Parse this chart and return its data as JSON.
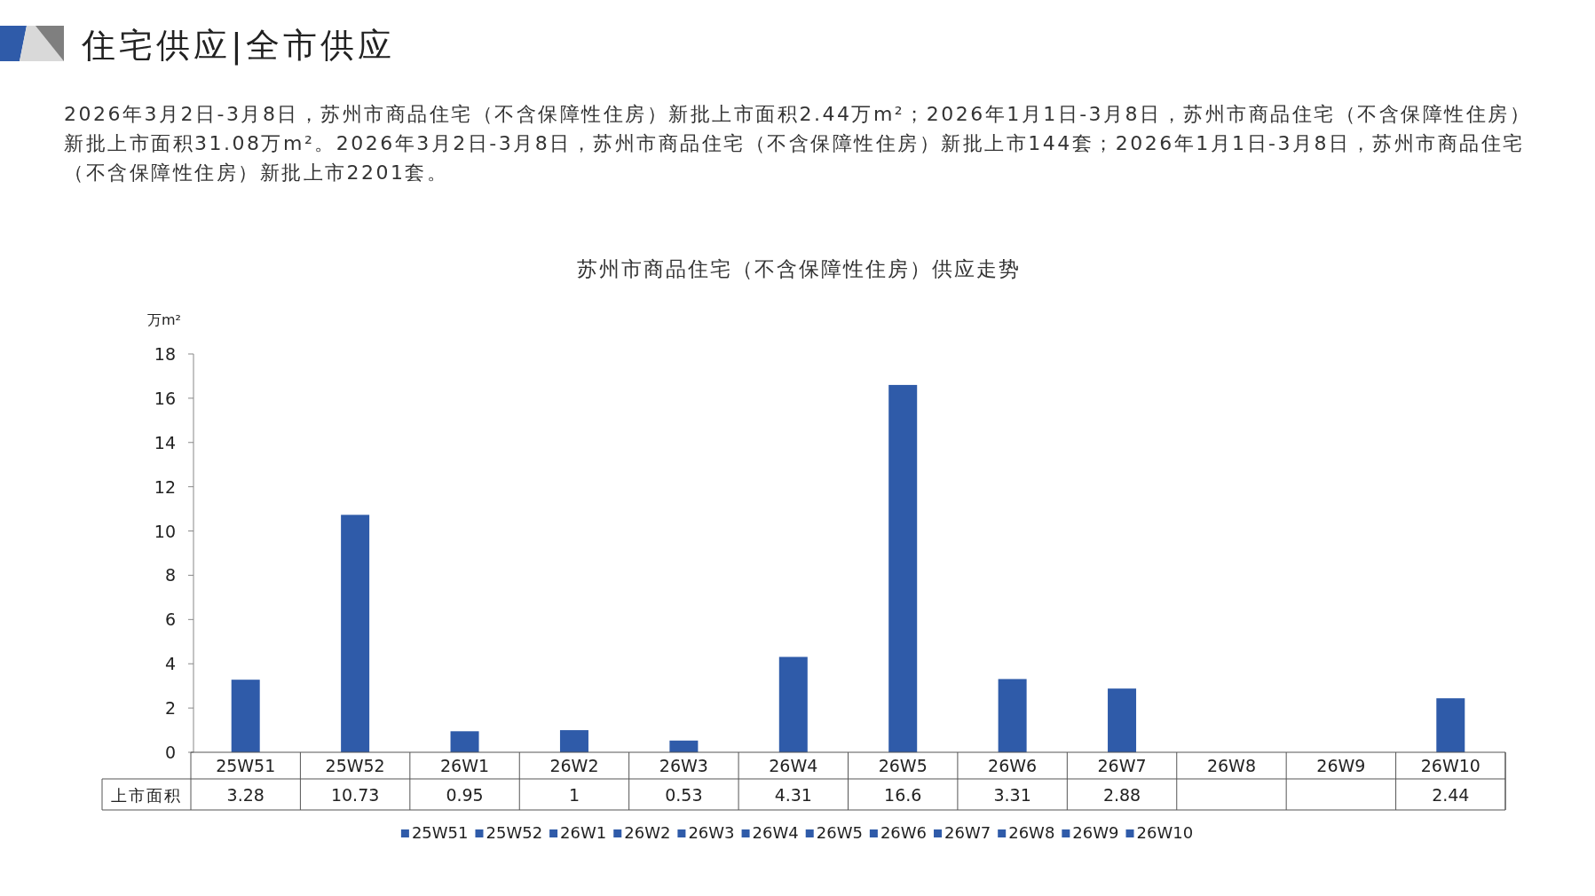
{
  "chart_data": {
    "type": "bar",
    "title": "苏州市商品住宅（不含保障性住房）供应走势",
    "annotations": [
      "住宅供应|全市供应",
      "2026年3月2日-3月8日，苏州市商品住宅（不含保障性住房）新批上市面积2.44万m²；2026年1月1日-3月8日，苏州市商品住宅（不含保障性住房）新批上市面积31.08万m²。2026年3月2日-3月8日，苏州市商品住宅（不含保障性住房）新批上市144套；2026年1月1日-3月8日，苏州市商品住宅（不含保障性住房）新批上市2201套。"
    ],
    "ylabel": "万m²",
    "categories": [
      "25W51",
      "25W52",
      "26W1",
      "26W2",
      "26W3",
      "26W4",
      "26W5",
      "26W6",
      "26W7",
      "26W8",
      "26W9",
      "26W10"
    ],
    "series": [
      {
        "name": "上市面积",
        "color": "#2f5ba9",
        "values": [
          3.28,
          10.73,
          0.95,
          1,
          0.53,
          4.31,
          16.6,
          3.31,
          2.88,
          null,
          null,
          2.44
        ]
      }
    ],
    "ylim": [
      0,
      18
    ],
    "yticks": [
      0,
      2,
      4,
      6,
      8,
      10,
      12,
      14,
      16,
      18
    ],
    "data_labels": true,
    "legend": "bottom"
  }
}
